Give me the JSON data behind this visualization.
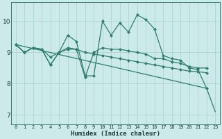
{
  "xlabel": "Humidex (Indice chaleur)",
  "xlim": [
    -0.5,
    23.5
  ],
  "ylim": [
    6.7,
    10.6
  ],
  "xticks": [
    0,
    1,
    2,
    3,
    4,
    5,
    6,
    7,
    8,
    9,
    10,
    11,
    12,
    13,
    14,
    15,
    16,
    17,
    18,
    19,
    20,
    21,
    22,
    23
  ],
  "yticks": [
    7,
    8,
    9,
    10
  ],
  "bg_color": "#cceae7",
  "line_color": "#2e7d6e",
  "grid_color": "#b0d8d2",
  "series1_x": [
    0,
    1,
    2,
    3,
    4,
    5,
    6,
    7,
    8,
    9,
    10,
    11,
    12,
    13,
    14,
    15,
    16,
    17,
    18,
    19,
    20,
    21,
    22,
    23
  ],
  "series1_y": [
    9.25,
    9.0,
    9.15,
    9.1,
    8.6,
    9.0,
    9.55,
    9.35,
    8.25,
    8.25,
    10.0,
    9.55,
    9.95,
    9.65,
    10.2,
    10.05,
    9.75,
    8.9,
    8.8,
    8.75,
    8.5,
    8.45,
    7.85,
    null
  ],
  "series2_x": [
    0,
    1,
    2,
    3,
    4,
    5,
    6,
    7,
    8,
    9,
    10,
    11,
    12,
    13,
    14,
    15,
    16,
    17,
    18,
    19,
    20,
    21,
    22,
    23
  ],
  "series2_y": [
    9.25,
    9.0,
    9.15,
    9.1,
    8.85,
    9.0,
    9.1,
    9.1,
    9.0,
    8.95,
    8.9,
    8.85,
    8.8,
    8.75,
    8.7,
    8.65,
    8.6,
    8.55,
    8.5,
    8.45,
    8.4,
    8.38,
    8.35,
    null
  ],
  "series3_x": [
    0,
    1,
    2,
    3,
    4,
    5,
    6,
    7,
    8,
    9,
    10,
    11,
    12,
    13,
    14,
    15,
    16,
    17,
    18,
    19,
    20,
    21,
    22,
    23
  ],
  "series3_y": [
    9.25,
    9.0,
    9.15,
    9.1,
    8.6,
    9.0,
    9.15,
    9.1,
    8.2,
    9.0,
    9.15,
    9.1,
    9.1,
    9.05,
    9.0,
    8.95,
    8.8,
    8.8,
    8.7,
    8.65,
    8.55,
    8.5,
    8.5,
    null
  ],
  "series4_x": [
    0,
    22,
    23
  ],
  "series4_y": [
    9.25,
    7.85,
    7.1
  ],
  "marker": "D",
  "markersize": 2.5,
  "linewidth": 0.9
}
